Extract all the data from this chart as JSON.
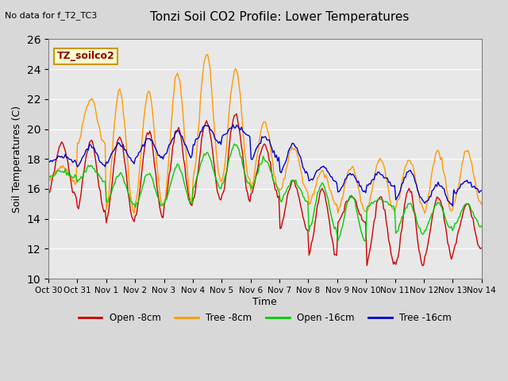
{
  "title": "Tonzi Soil CO2 Profile: Lower Temperatures",
  "subtitle": "No data for f_T2_TC3",
  "ylabel": "Soil Temperatures (C)",
  "xlabel": "Time",
  "legend_label": "TZ_soilco2",
  "ylim": [
    10,
    26
  ],
  "yticks": [
    10,
    12,
    14,
    16,
    18,
    20,
    22,
    24,
    26
  ],
  "x_labels": [
    "Oct 30",
    "Oct 31",
    "Nov 1",
    "Nov 2",
    "Nov 3",
    "Nov 4",
    "Nov 5",
    "Nov 6",
    "Nov 7",
    "Nov 8",
    "Nov 9",
    "Nov 10",
    "Nov 11",
    "Nov 12",
    "Nov 13",
    "Nov 14"
  ],
  "colors": {
    "open_8cm": "#cc0000",
    "tree_8cm": "#ff9900",
    "open_16cm": "#00cc00",
    "tree_16cm": "#0000cc"
  },
  "background_color": "#e8e8e8",
  "plot_bg_color": "#e8e8e8",
  "legend_entries": [
    "Open -8cm",
    "Tree -8cm",
    "Open -16cm",
    "Tree -16cm"
  ]
}
